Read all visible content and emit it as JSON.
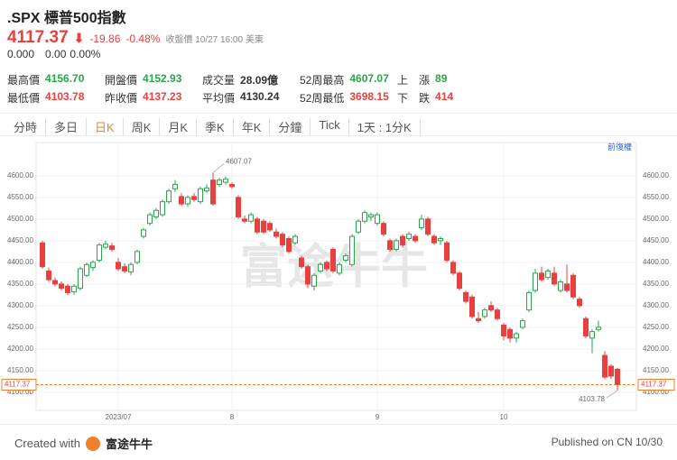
{
  "header": {
    "title": ".SPX 標普500指數",
    "price": "4117.37",
    "change": "-19.86",
    "change_pct": "-0.48%",
    "status": "收盤價 10/27 16:00 美東",
    "after": "0.000",
    "after_change": "0.00",
    "after_pct": "0.00%"
  },
  "stats": [
    [
      {
        "label": "最高價",
        "value": "4156.70"
      },
      {
        "label": "開盤價",
        "value": "4152.93"
      },
      {
        "label": "成交量",
        "value": "28.09億"
      },
      {
        "label": "52周最高",
        "value": "4607.07"
      },
      {
        "label": "上　漲",
        "value": "89"
      }
    ],
    [
      {
        "label": "最低價",
        "value": "4103.78"
      },
      {
        "label": "昨收價",
        "value": "4137.23"
      },
      {
        "label": "平均價",
        "value": "4130.24"
      },
      {
        "label": "52周最低",
        "value": "3698.15"
      },
      {
        "label": "下　跌",
        "value": "414"
      }
    ]
  ],
  "tabs": [
    "分時",
    "多日",
    "日K",
    "周K",
    "月K",
    "季K",
    "年K",
    "分鐘",
    "Tick",
    "1天 : 1分K"
  ],
  "active_tab": 2,
  "adjust": "前復權",
  "watermark": "富途牛牛",
  "footer": {
    "created": "Created with",
    "brand": "富途牛牛",
    "published": "Published on CN 10/30"
  },
  "chart_data": {
    "type": "candlestick",
    "up_color": "#2aa54a",
    "down_color": "#e8403f",
    "grid": true,
    "ylim": [
      4058,
      4656
    ],
    "yticks": [
      {
        "value": 4100,
        "label": "4100.00"
      },
      {
        "value": 4150,
        "label": "4150.00"
      },
      {
        "value": 4200,
        "label": "4200.00"
      },
      {
        "value": 4250,
        "label": "4250.00"
      },
      {
        "value": 4300,
        "label": "4300.00"
      },
      {
        "value": 4350,
        "label": "4350.00"
      },
      {
        "value": 4400,
        "label": "4400.00"
      },
      {
        "value": 4450,
        "label": "4450.00"
      },
      {
        "value": 4500,
        "label": "4500.00"
      },
      {
        "value": 4550,
        "label": "4550.00"
      },
      {
        "value": 4600,
        "label": "4600.00"
      }
    ],
    "categories": [
      null,
      null,
      null,
      null,
      null,
      null,
      null,
      null,
      null,
      null,
      null,
      null,
      "2023/07",
      null,
      null,
      null,
      null,
      null,
      null,
      null,
      null,
      null,
      null,
      null,
      null,
      null,
      null,
      null,
      null,
      null,
      "8",
      null,
      null,
      null,
      null,
      null,
      null,
      null,
      null,
      null,
      null,
      null,
      null,
      null,
      null,
      null,
      null,
      null,
      null,
      null,
      null,
      null,
      null,
      "9",
      null,
      null,
      null,
      null,
      null,
      null,
      null,
      null,
      null,
      null,
      null,
      null,
      null,
      null,
      null,
      null,
      null,
      null,
      null,
      "10",
      null,
      null,
      null,
      null,
      null,
      null,
      null,
      null,
      null,
      null,
      null,
      null,
      null,
      null,
      null,
      null,
      null,
      null
    ],
    "candles": [
      [
        4445,
        4450,
        4385,
        4390
      ],
      [
        4380,
        4388,
        4355,
        4360
      ],
      [
        4358,
        4365,
        4345,
        4350
      ],
      [
        4350,
        4356,
        4335,
        4340
      ],
      [
        4345,
        4350,
        4325,
        4330
      ],
      [
        4332,
        4350,
        4325,
        4345
      ],
      [
        4340,
        4390,
        4335,
        4385
      ],
      [
        4370,
        4400,
        4365,
        4395
      ],
      [
        4388,
        4405,
        4380,
        4400
      ],
      [
        4405,
        4445,
        4400,
        4440
      ],
      [
        4435,
        4450,
        4430,
        4442
      ],
      [
        4438,
        4445,
        4425,
        4430
      ],
      [
        4400,
        4410,
        4380,
        4385
      ],
      [
        4390,
        4398,
        4375,
        4380
      ],
      [
        4378,
        4400,
        4370,
        4395
      ],
      [
        4400,
        4430,
        4395,
        4425
      ],
      [
        4460,
        4480,
        4455,
        4475
      ],
      [
        4490,
        4515,
        4485,
        4510
      ],
      [
        4505,
        4525,
        4500,
        4520
      ],
      [
        4510,
        4545,
        4505,
        4540
      ],
      [
        4540,
        4570,
        4535,
        4565
      ],
      [
        4570,
        4590,
        4562,
        4580
      ],
      [
        4552,
        4560,
        4530,
        4535
      ],
      [
        4535,
        4555,
        4528,
        4550
      ],
      [
        4552,
        4560,
        4540,
        4545
      ],
      [
        4540,
        4575,
        4535,
        4570
      ],
      [
        4565,
        4580,
        4560,
        4572
      ],
      [
        4590,
        4607.07,
        4530,
        4535
      ],
      [
        4580,
        4595,
        4575,
        4590
      ],
      [
        4585,
        4598,
        4580,
        4592
      ],
      [
        4580,
        4585,
        4570,
        4575
      ],
      [
        4550,
        4555,
        4500,
        4505
      ],
      [
        4500,
        4508,
        4490,
        4495
      ],
      [
        4495,
        4515,
        4490,
        4510
      ],
      [
        4500,
        4505,
        4465,
        4470
      ],
      [
        4495,
        4500,
        4465,
        4470
      ],
      [
        4490,
        4495,
        4470,
        4475
      ],
      [
        4470,
        4478,
        4455,
        4460
      ],
      [
        4465,
        4470,
        4435,
        4440
      ],
      [
        4455,
        4460,
        4420,
        4425
      ],
      [
        4445,
        4465,
        4440,
        4460
      ],
      [
        4410,
        4415,
        4385,
        4390
      ],
      [
        4390,
        4395,
        4340,
        4350
      ],
      [
        4345,
        4375,
        4335,
        4370
      ],
      [
        4380,
        4400,
        4375,
        4395
      ],
      [
        4400,
        4405,
        4380,
        4385
      ],
      [
        4430,
        4435,
        4375,
        4380
      ],
      [
        4375,
        4400,
        4370,
        4395
      ],
      [
        4405,
        4420,
        4400,
        4415
      ],
      [
        4395,
        4465,
        4390,
        4460
      ],
      [
        4470,
        4500,
        4465,
        4495
      ],
      [
        4495,
        4520,
        4490,
        4515
      ],
      [
        4505,
        4515,
        4495,
        4510
      ],
      [
        4490,
        4515,
        4485,
        4510
      ],
      [
        4490,
        4495,
        4460,
        4465
      ],
      [
        4450,
        4455,
        4425,
        4430
      ],
      [
        4430,
        4455,
        4425,
        4450
      ],
      [
        4460,
        4465,
        4435,
        4440
      ],
      [
        4455,
        4470,
        4450,
        4465
      ],
      [
        4460,
        4465,
        4445,
        4450
      ],
      [
        4480,
        4510,
        4475,
        4500
      ],
      [
        4500,
        4505,
        4460,
        4465
      ],
      [
        4460,
        4465,
        4440,
        4445
      ],
      [
        4450,
        4460,
        4440,
        4455
      ],
      [
        4445,
        4450,
        4400,
        4405
      ],
      [
        4400,
        4405,
        4370,
        4375
      ],
      [
        4375,
        4380,
        4335,
        4340
      ],
      [
        4330,
        4335,
        4305,
        4310
      ],
      [
        4320,
        4325,
        4270,
        4275
      ],
      [
        4270,
        4285,
        4260,
        4265
      ],
      [
        4275,
        4295,
        4270,
        4290
      ],
      [
        4300,
        4310,
        4285,
        4290
      ],
      [
        4290,
        4295,
        4265,
        4270
      ],
      [
        4255,
        4260,
        4220,
        4230
      ],
      [
        4245,
        4250,
        4215,
        4225
      ],
      [
        4225,
        4240,
        4215,
        4235
      ],
      [
        4250,
        4270,
        4245,
        4265
      ],
      [
        4290,
        4335,
        4285,
        4330
      ],
      [
        4335,
        4385,
        4330,
        4375
      ],
      [
        4375,
        4390,
        4355,
        4360
      ],
      [
        4365,
        4385,
        4360,
        4380
      ],
      [
        4375,
        4390,
        4345,
        4350
      ],
      [
        4335,
        4360,
        4330,
        4355
      ],
      [
        4350,
        4395,
        4330,
        4335
      ],
      [
        4370,
        4375,
        4315,
        4320
      ],
      [
        4315,
        4320,
        4295,
        4300
      ],
      [
        4270,
        4275,
        4225,
        4230
      ],
      [
        4225,
        4245,
        4190,
        4240
      ],
      [
        4245,
        4265,
        4240,
        4250
      ],
      [
        4185,
        4195,
        4130,
        4135
      ],
      [
        4160,
        4165,
        4130,
        4137.23
      ],
      [
        4152.93,
        4156.7,
        4103.78,
        4117.37
      ]
    ]
  }
}
